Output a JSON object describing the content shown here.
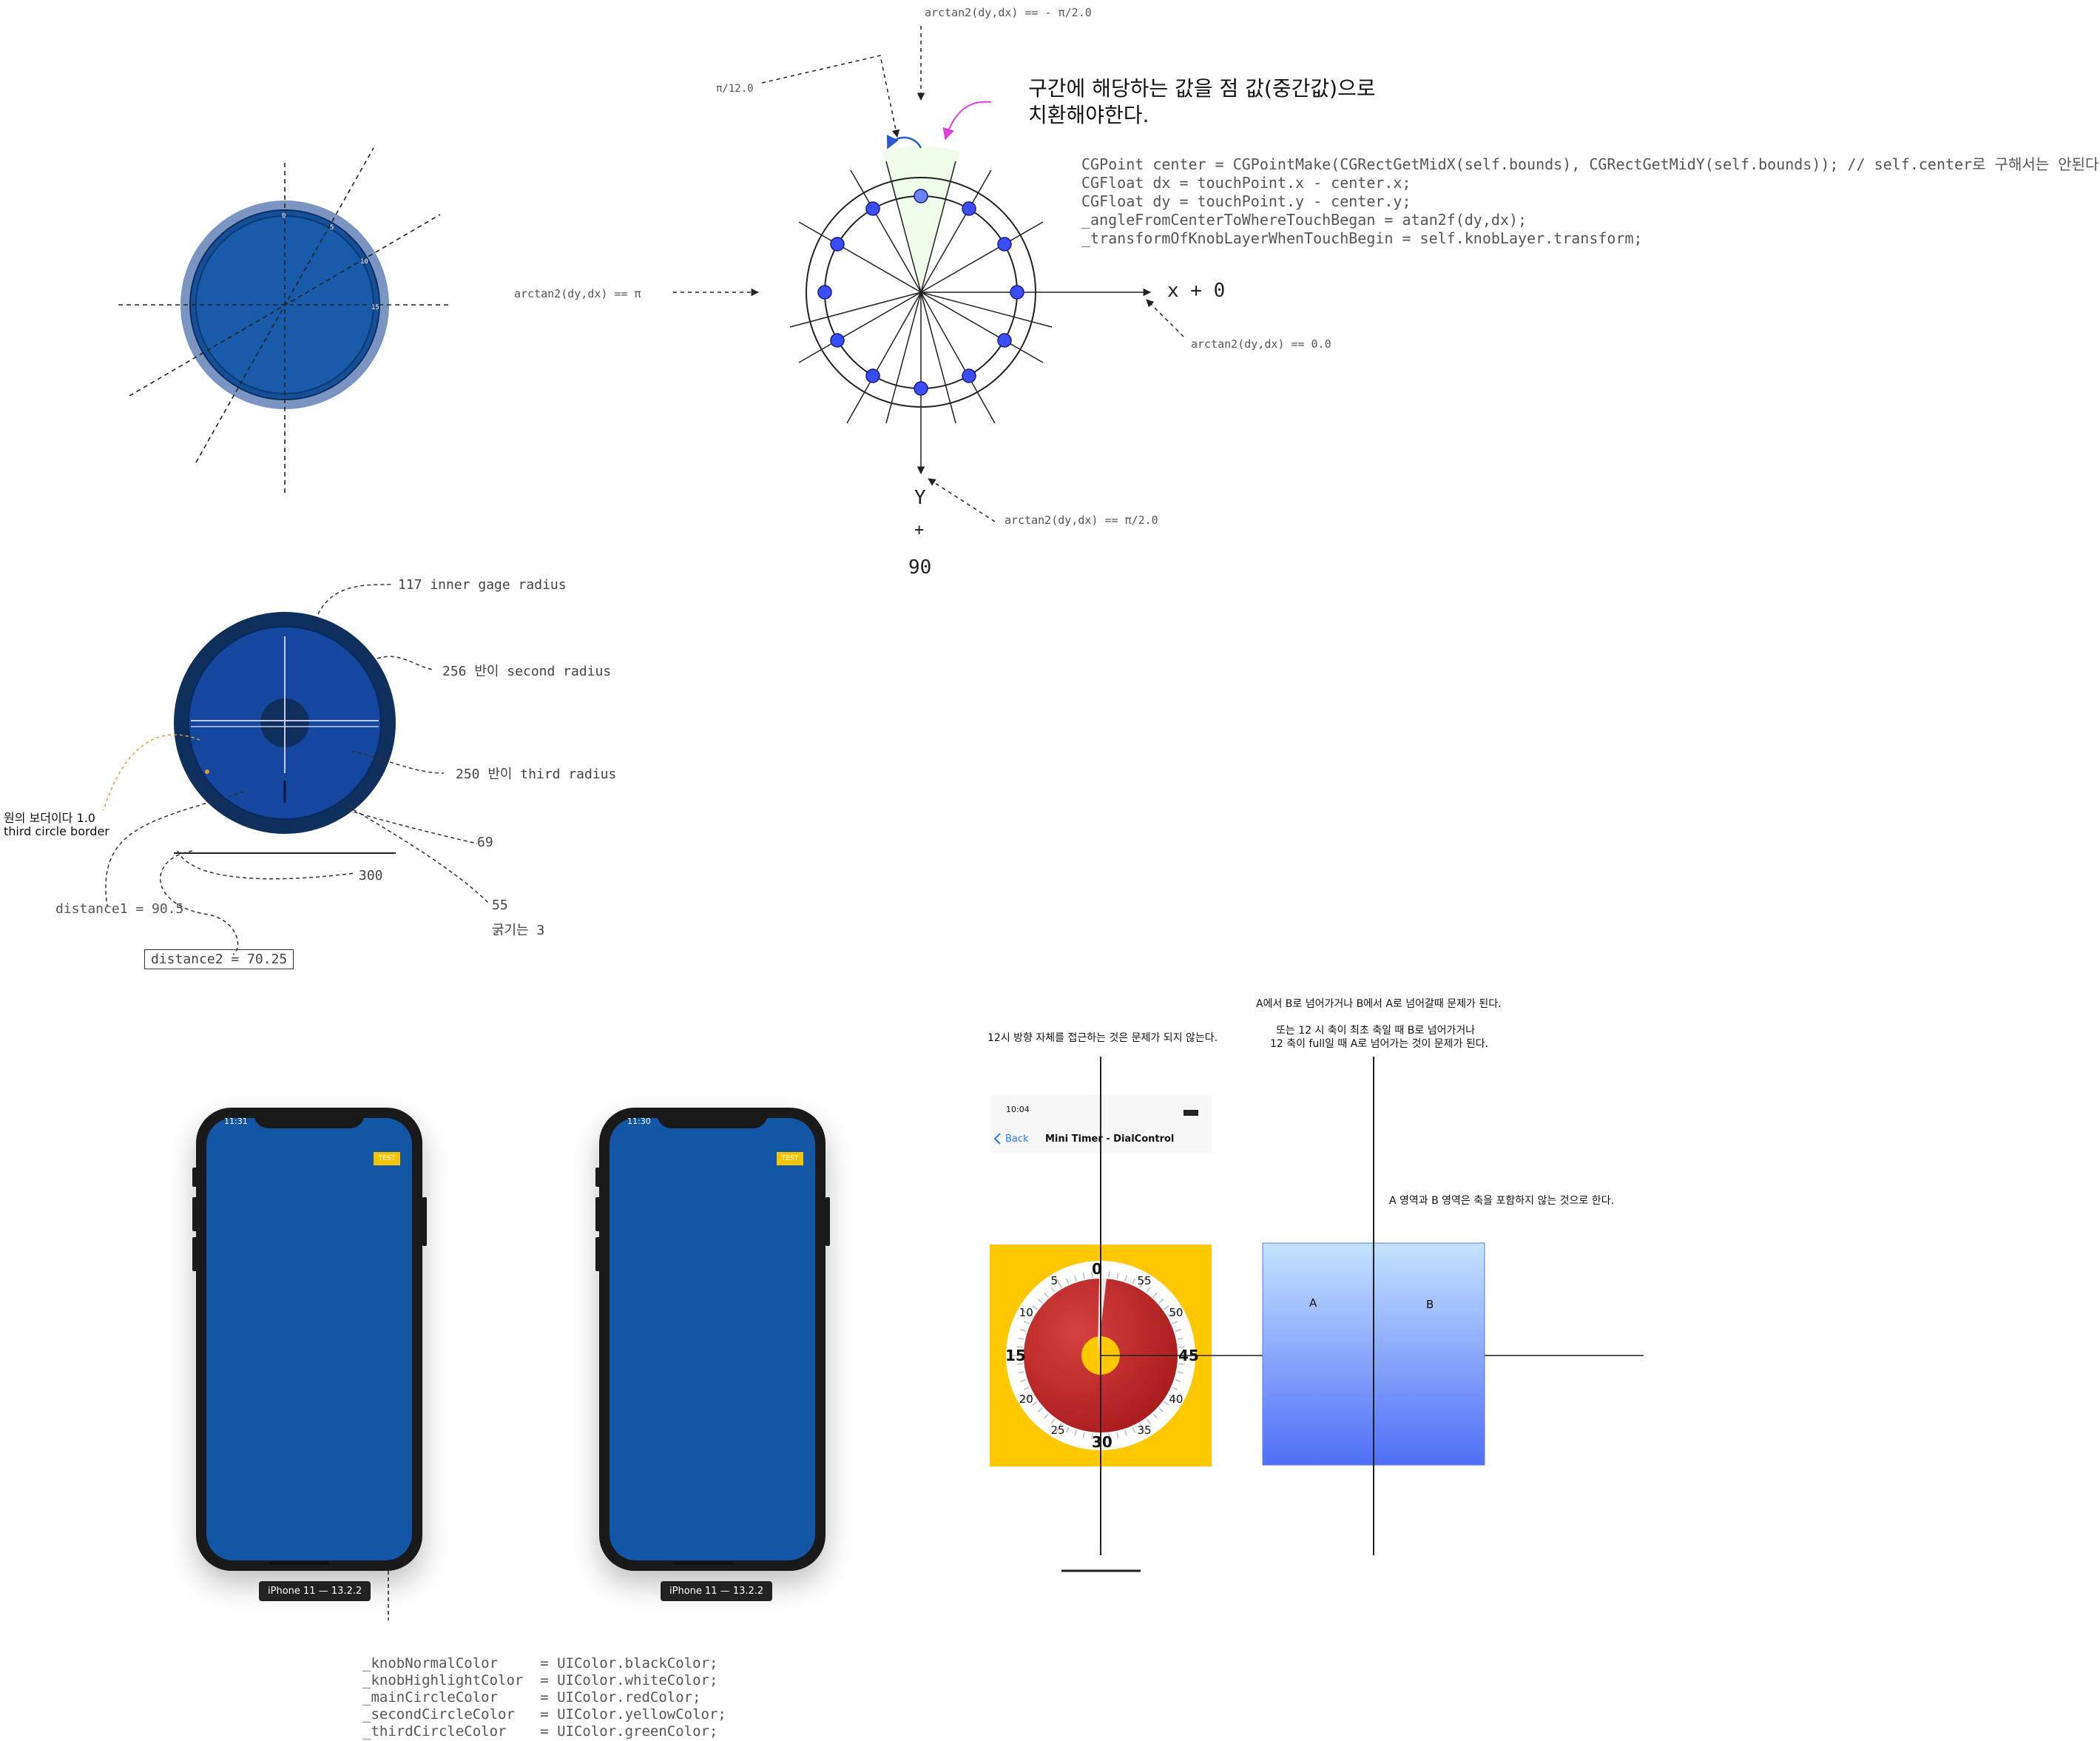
{
  "top_diagram": {
    "label_top": "arctan2(dy,dx) == - π/2.0",
    "label_pi12": "π/12.0",
    "note_line1": "구간에  해당하는  값을  점  값(중간값)으로",
    "note_line2": "치환해야한다.",
    "label_left": "arctan2(dy,dx) == π",
    "label_right": "arctan2(dy,dx) == 0.0",
    "label_bottom": "arctan2(dy,dx) == π/2.0",
    "x_axis": "x  +  0",
    "y_axis": "Y",
    "y_plus": "+",
    "y_90": "90",
    "code_lines": [
      "CGPoint center = CGPointMake(CGRectGetMidX(self.bounds), CGRectGetMidY(self.bounds)); // self.center로 구해서는 안된다.",
      "CGFloat dx = touchPoint.x - center.x;",
      "CGFloat dy = touchPoint.y - center.y;",
      "_angleFromCenterToWhereTouchBegan = atan2f(dy,dx);",
      "_transformOfKnobLayerWhenTouchBegin = self.knobLayer.transform;"
    ]
  },
  "gauge_diagram": {
    "inner_gage": "117  inner gage radius",
    "second_radius": "256  반이 second radius",
    "third_radius": "250  반이 third radius",
    "border_note_1": "원의  보더이다 1.0",
    "border_note_2": "third circle border",
    "val_69": "69",
    "val_300": "300",
    "val_55": "55",
    "thickness": "굵기는  3",
    "distance1": "distance1 = 90.5",
    "distance2": "distance2 = 70.25"
  },
  "phones": [
    {
      "time": "11:31",
      "test": "TEST",
      "caption": "iPhone 11 — 13.2.2",
      "knob": "black"
    },
    {
      "time": "11:30",
      "test": "TEST",
      "caption": "iPhone 11 — 13.2.2",
      "knob": "white"
    }
  ],
  "color_code": [
    "_knobNormalColor     = UIColor.blackColor;",
    "_knobHighlightColor  = UIColor.whiteColor;",
    "_mainCircleColor     = UIColor.redColor;",
    "_secondCircleColor   = UIColor.yellowColor;",
    "_thirdCircleColor    = UIColor.greenColor;"
  ],
  "timer": {
    "note_12": "12시 방향 자체를 접근하는 것은 문제가 되지 않는다.",
    "status_time": "10:04",
    "back": "Back",
    "nav_title": "Mini Timer - DialControl",
    "dial_numbers": [
      "0",
      "5",
      "10",
      "15",
      "20",
      "25",
      "30",
      "35",
      "40",
      "45",
      "50",
      "55"
    ]
  },
  "region": {
    "note_ab": "A에서 B로 넘어가거나 B에서 A로 넘어갈때 문제가 된다.",
    "note_12_1": "또는 12 시 축이 최초 축일 때 B로 넘어가거나",
    "note_12_2": "12 축이 full일 때 A로 넘어가는 것이 문제가 된다.",
    "note_exclude": "A 영역과 B 영역은 축을 포함하지 않는 것으로 한다.",
    "label_a": "A",
    "label_b": "B"
  },
  "colors": {
    "navy_dial": "#1456a6",
    "dot_blue": "#3b4df5",
    "timer_yellow": "#ffc800",
    "region_top": "#bfe0ff",
    "region_bottom": "#4f6ff8"
  }
}
